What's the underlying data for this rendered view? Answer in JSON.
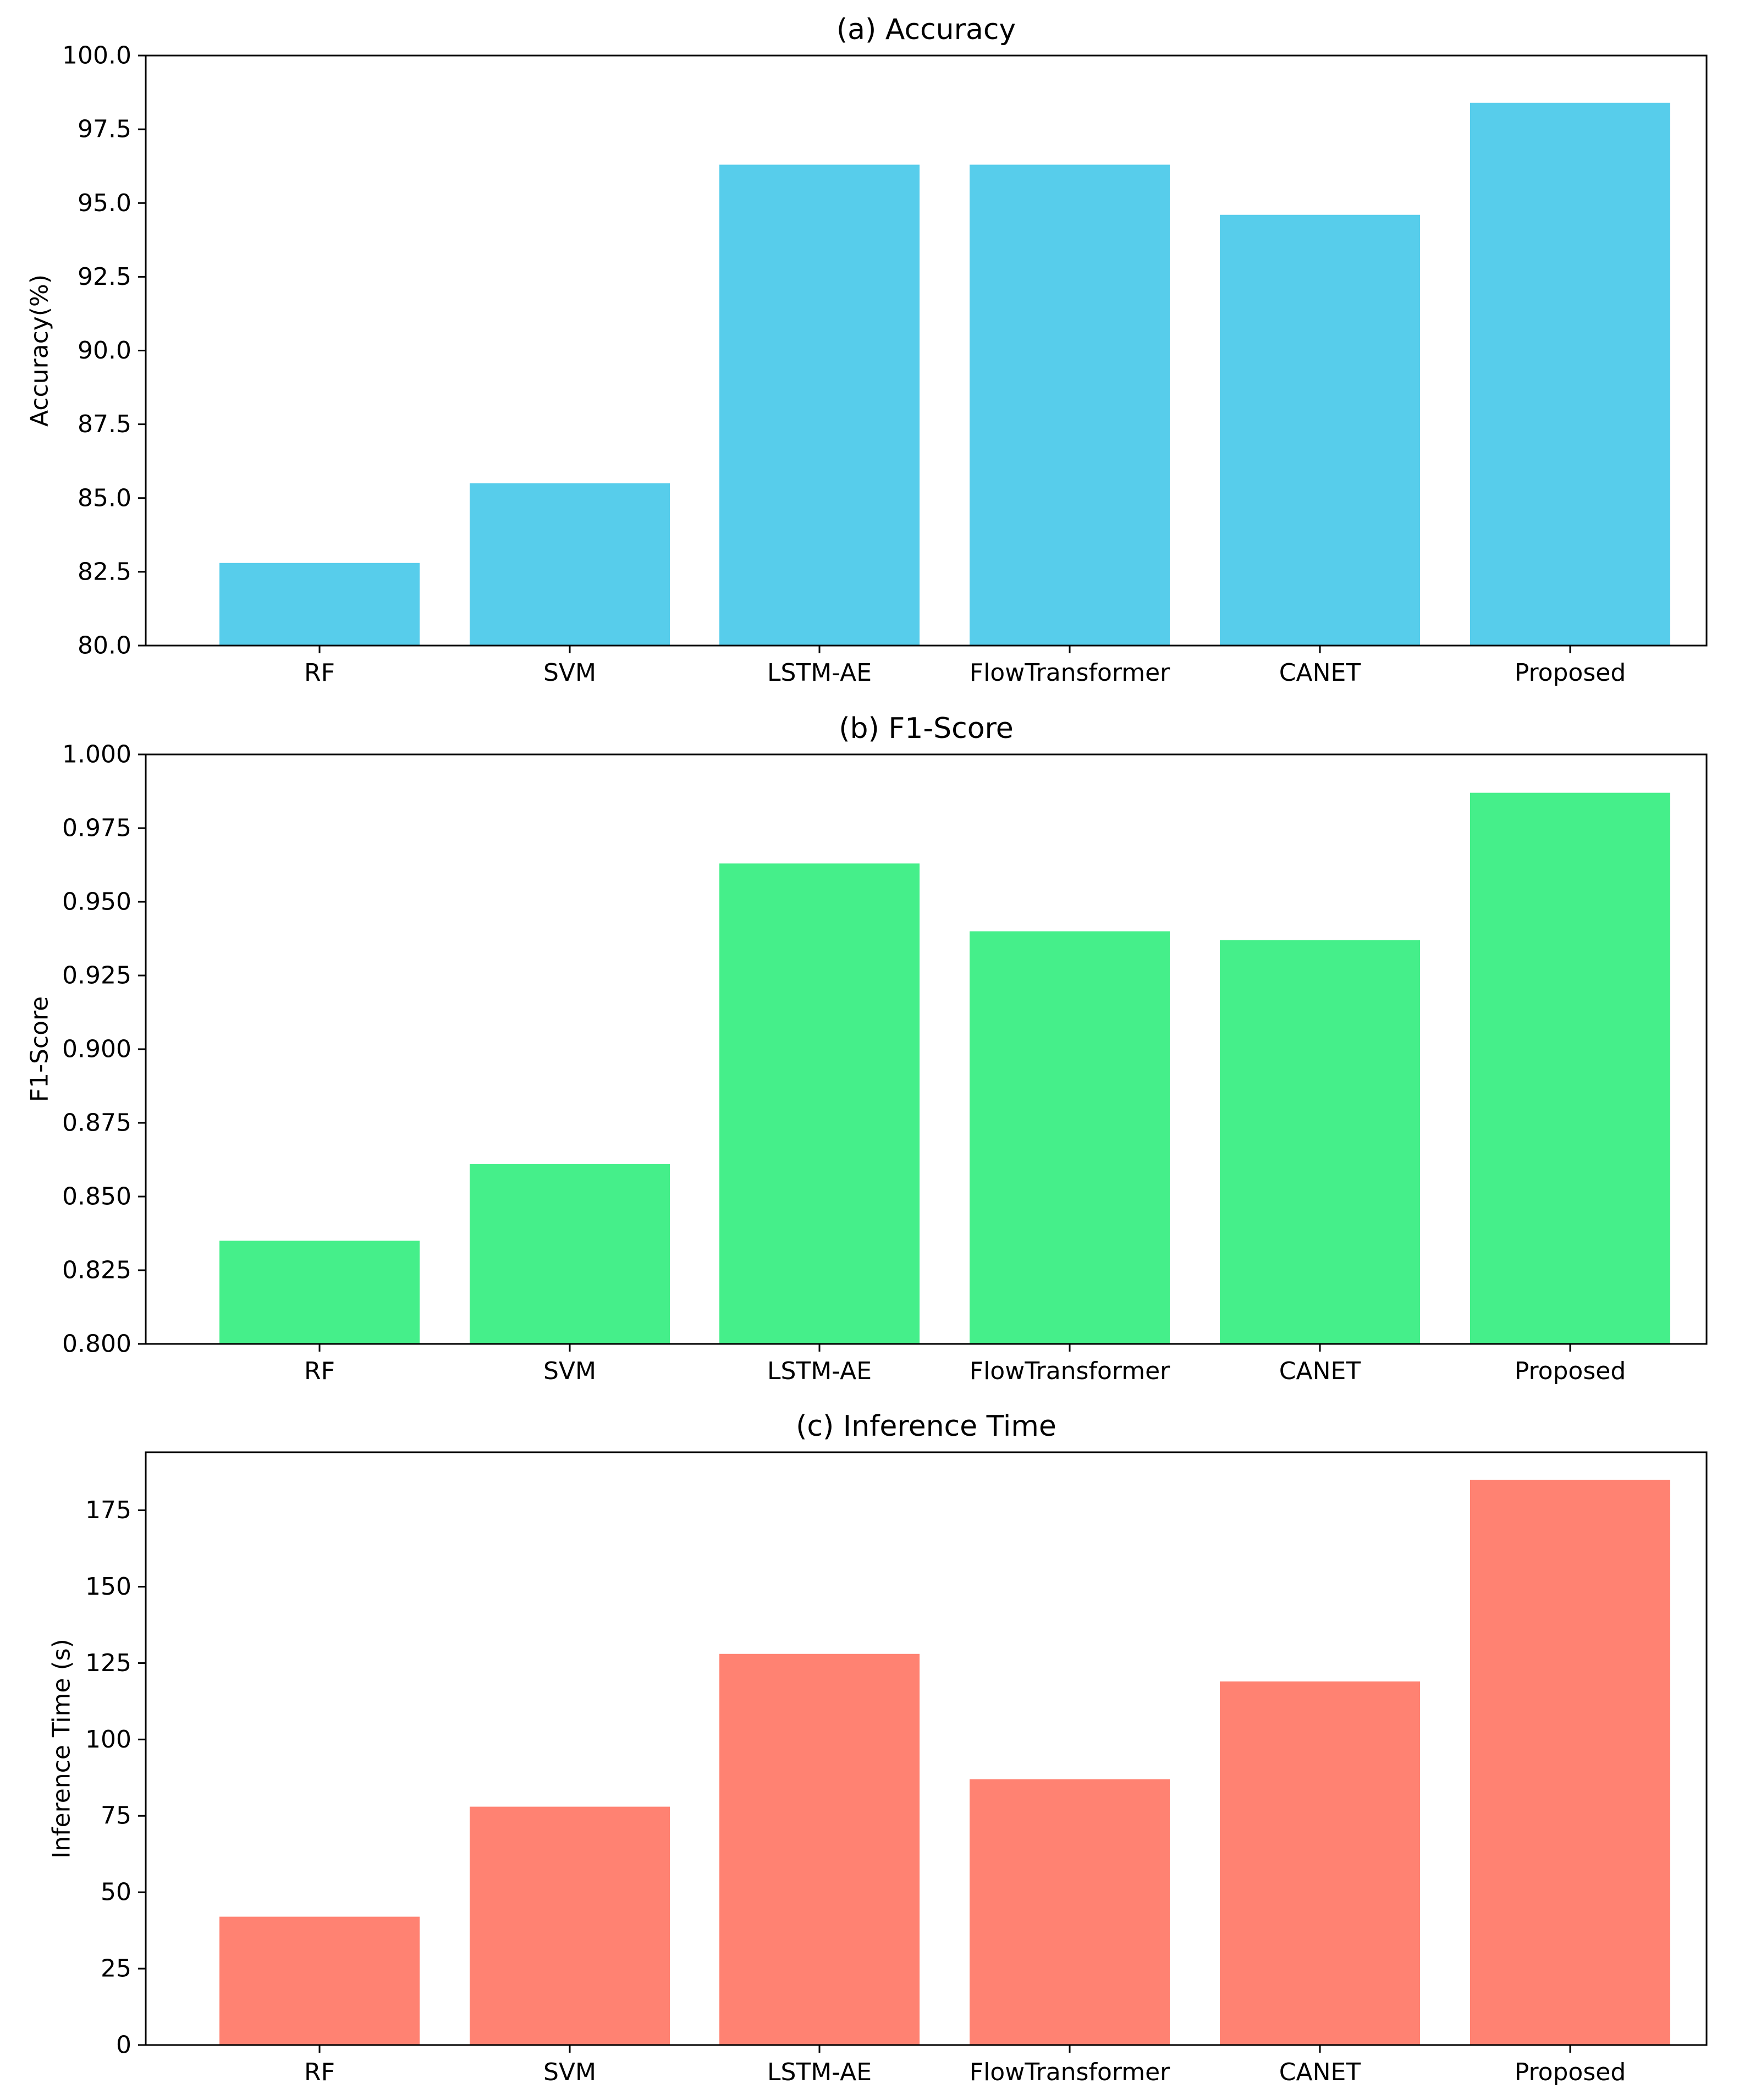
{
  "chart_data": [
    {
      "type": "bar",
      "title": "(a) Accuracy",
      "xlabel": "",
      "ylabel": "Accuracy(%)",
      "categories": [
        "RF",
        "SVM",
        "LSTM-AE",
        "FlowTransformer",
        "CANET",
        "Proposed"
      ],
      "values": [
        82.8,
        85.5,
        96.3,
        96.3,
        94.6,
        98.4
      ],
      "ylim": [
        80.0,
        100.0
      ],
      "yticks": [
        80.0,
        82.5,
        85.0,
        87.5,
        90.0,
        92.5,
        95.0,
        97.5,
        100.0
      ],
      "ytick_labels": [
        "80.0",
        "82.5",
        "85.0",
        "87.5",
        "90.0",
        "92.5",
        "95.0",
        "97.5",
        "100.0"
      ],
      "color": "#57CDEB",
      "grid": false
    },
    {
      "type": "bar",
      "title": "(b) F1-Score",
      "xlabel": "",
      "ylabel": "F1-Score",
      "categories": [
        "RF",
        "SVM",
        "LSTM-AE",
        "FlowTransformer",
        "CANET",
        "Proposed"
      ],
      "values": [
        0.835,
        0.861,
        0.963,
        0.94,
        0.937,
        0.987
      ],
      "ylim": [
        0.8,
        1.0
      ],
      "yticks": [
        0.8,
        0.825,
        0.85,
        0.875,
        0.9,
        0.925,
        0.95,
        0.975,
        1.0
      ],
      "ytick_labels": [
        "0.800",
        "0.825",
        "0.850",
        "0.875",
        "0.900",
        "0.925",
        "0.950",
        "0.975",
        "1.000"
      ],
      "color": "#45EF8A",
      "grid": false
    },
    {
      "type": "bar",
      "title": "(c) Inference Time",
      "xlabel": "",
      "ylabel": "Inference Time (s)",
      "categories": [
        "RF",
        "SVM",
        "LSTM-AE",
        "FlowTransformer",
        "CANET",
        "Proposed"
      ],
      "values": [
        42,
        78,
        128,
        87,
        119,
        185
      ],
      "ylim": [
        0,
        194
      ],
      "yticks": [
        0,
        25,
        50,
        75,
        100,
        125,
        150,
        175
      ],
      "ytick_labels": [
        "0",
        "25",
        "50",
        "75",
        "100",
        "125",
        "150",
        "175"
      ],
      "color": "#FF8272",
      "grid": false
    }
  ]
}
